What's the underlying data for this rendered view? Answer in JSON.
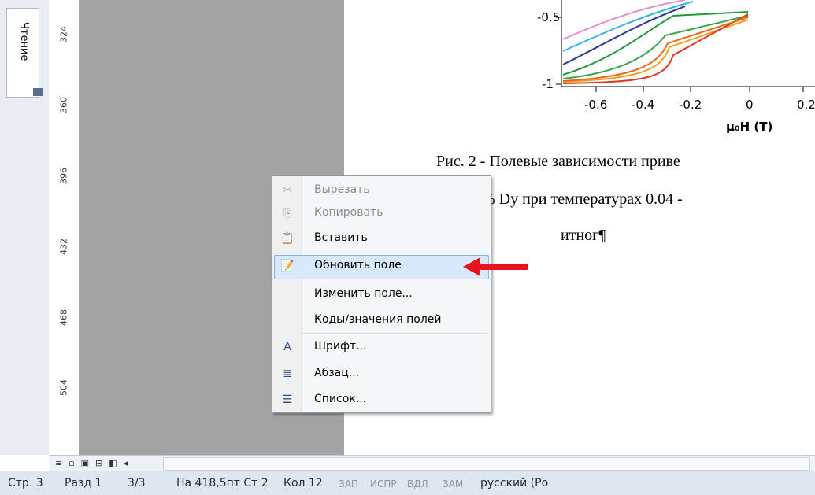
{
  "sidebar": {
    "tab": "Чтение"
  },
  "ruler": {
    "marks": [
      "324",
      "360",
      "396",
      "432",
      "468",
      "504"
    ]
  },
  "figure": {
    "yticks": [
      "-0.5",
      "-1"
    ],
    "xticks": [
      "-0.6",
      "-0.4",
      "-0.2",
      "0",
      "0.2"
    ],
    "xlabel": "μ₀H (T)"
  },
  "document": {
    "lines": [
      "Рис. 2 - Полевые зависимости приве",
      "% Dy при температурах 0.04 -",
      "итног¶"
    ]
  },
  "context_menu": {
    "items": [
      {
        "label": "Вырезать",
        "disabled": true
      },
      {
        "label": "Копировать",
        "disabled": true
      },
      {
        "label": "Вставить",
        "disabled": false
      },
      {
        "label": "Обновить поле",
        "disabled": false,
        "highlighted": true
      },
      {
        "label": "Изменить поле...",
        "disabled": false
      },
      {
        "label": "Коды/значения полей",
        "disabled": false
      },
      {
        "label": "Шрифт...",
        "disabled": false
      },
      {
        "label": "Абзац...",
        "disabled": false
      },
      {
        "label": "Список...",
        "disabled": false
      }
    ]
  },
  "status_bar": {
    "items": [
      "Стр. 3",
      "Разд 1",
      "3/3",
      "На 418,5пт Ст 2",
      "Кол 12",
      "ЗАП",
      "ИСПР",
      "ВДЛ",
      "ЗАМ",
      "русский (Ро"
    ]
  }
}
